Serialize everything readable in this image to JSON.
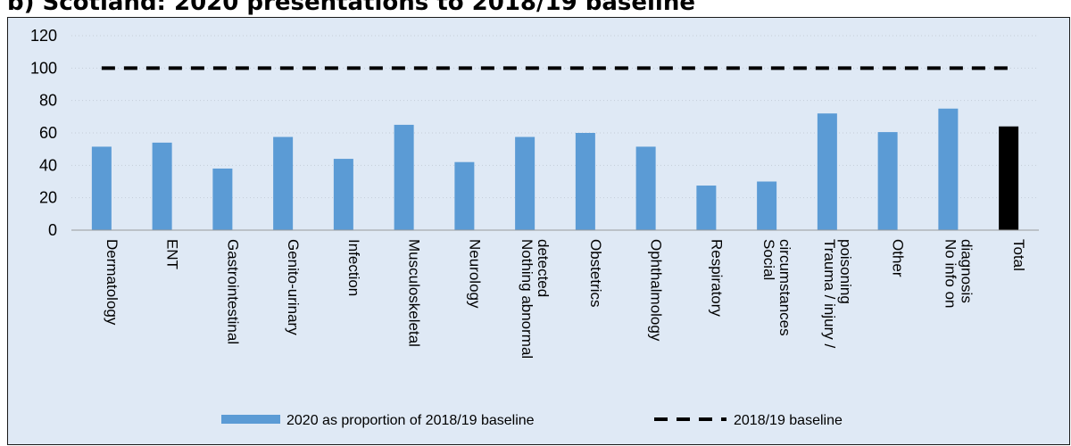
{
  "title": "b) Scotland: 2020 presentations to 2018/19 baseline",
  "chart_data": {
    "type": "bar",
    "title": "b) Scotland: 2020 presentations to 2018/19 baseline",
    "xlabel": "",
    "ylabel": "",
    "ylim": [
      0,
      120
    ],
    "yticks": [
      0,
      20,
      40,
      60,
      80,
      100,
      120
    ],
    "grid": true,
    "legend_position": "bottom",
    "categories": [
      [
        "Dermatology"
      ],
      [
        "ENT"
      ],
      [
        "Gastrointestinal"
      ],
      [
        "Genito-urinary"
      ],
      [
        "Infection"
      ],
      [
        "Musculoskeletal"
      ],
      [
        "Neurology"
      ],
      [
        "Nothing abnormal",
        "detected"
      ],
      [
        "Obstetrics"
      ],
      [
        "Ophthalmology"
      ],
      [
        "Respiratory"
      ],
      [
        "Social",
        "circumstances"
      ],
      [
        "Trauma / injury /",
        "poisoning"
      ],
      [
        "Other"
      ],
      [
        "No info on",
        "diagnosis"
      ],
      [
        "Total"
      ]
    ],
    "series": [
      {
        "name": "2020 as proportion of 2018/19 baseline",
        "type": "bar",
        "color": "#5b9bd5",
        "highlight": {
          "category_index": 15,
          "color": "#000000"
        },
        "values": [
          51.5,
          54,
          38,
          57.5,
          44,
          65,
          42,
          57.5,
          60,
          51.5,
          27.5,
          30,
          72,
          60.5,
          75,
          64
        ]
      },
      {
        "name": "2018/19 baseline",
        "type": "line",
        "style": "dashed",
        "color": "#000000",
        "values": [
          100,
          100,
          100,
          100,
          100,
          100,
          100,
          100,
          100,
          100,
          100,
          100,
          100,
          100,
          100,
          100
        ]
      }
    ]
  }
}
